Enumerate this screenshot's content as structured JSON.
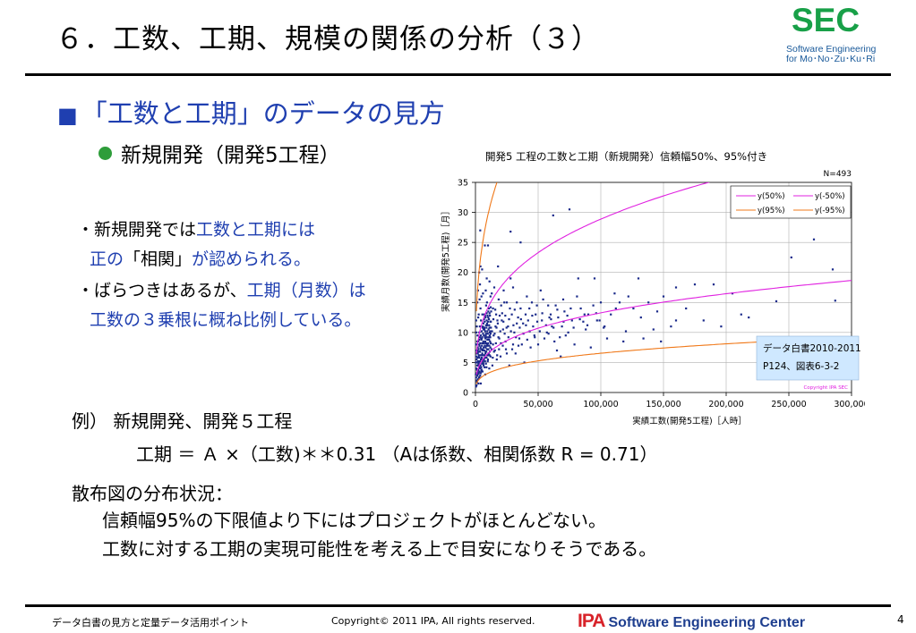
{
  "slide": {
    "title": "６．工数、工期、規模の関係の分析（３）",
    "logo": {
      "mark": "SEC",
      "line1": "Software Engineering",
      "line2": "for Mo･No･Zu･Ku･Ri"
    },
    "heading": "「工数と工期」のデータの見方",
    "subheading": "新規開発（開発5工程）",
    "note1": {
      "prefix": "・新規開発では",
      "emph1": "工数と工期には",
      "line2_emph_a": "正の",
      "line2_mid": "「相関」",
      "line2_rest": "が認められる。"
    },
    "note2": {
      "prefix": "・ばらつきはあるが、",
      "emph1": "工期（月数）は",
      "line2": "工数の３乗根に概ね比例している。"
    },
    "example_label": "例）  新規開発、開発５工程",
    "formula": "工期 ＝ Ａ ×（工数)＊＊0.31  （Aは係数、相関係数 R = 0.71）",
    "distribution_label": "散布図の分布状況：",
    "distribution_lines": [
      "信頼幅95%の下限値より下にはプロジェクトがほとんどない。",
      "工数に対する工期の実現可能性を考える上で目安になりそうである。"
    ]
  },
  "footer": {
    "left": "データ白書の見方と定量データ活用ポイント",
    "copyright": "Copyright© 2011 IPA, All rights reserved.",
    "brand_ipa": "IPA",
    "brand_text": "Software Engineering Center",
    "page": "4"
  },
  "chart_data": {
    "type": "scatter",
    "title": "開発5 工程の工数と工期（新規開発）信頼幅50%、95%付き",
    "n_label": "N=493",
    "xlabel": "実績工数(開発5工程)［人時］",
    "ylabel": "実績月数(開発5工程)［月］",
    "xlim": [
      0,
      300000
    ],
    "ylim": [
      0,
      35
    ],
    "xticks": [
      0,
      50000,
      100000,
      150000,
      200000,
      250000,
      300000
    ],
    "xtick_labels": [
      "0",
      "50,000",
      "100,000",
      "150,000",
      "200,000",
      "250,000",
      "300,000"
    ],
    "yticks": [
      0,
      5,
      10,
      15,
      20,
      25,
      30,
      35
    ],
    "legend": {
      "placement": "top-right",
      "entries": [
        {
          "label": "y(50%)",
          "color": "#e020e0"
        },
        {
          "label": "y(-50%)",
          "color": "#e020e0"
        },
        {
          "label": "y(95%)",
          "color": "#f07818"
        },
        {
          "label": "y(-95%)",
          "color": "#f07818"
        }
      ]
    },
    "fit": {
      "coefficient": 0.55,
      "exponent": 0.31
    },
    "bands": [
      {
        "name": "y(50%)",
        "factor": 1.48,
        "color": "#e020e0"
      },
      {
        "name": "y(-50%)",
        "factor": 0.68,
        "color": "#e020e0"
      },
      {
        "name": "y(95%)",
        "factor": 3.1,
        "color": "#f07818"
      },
      {
        "name": "y(-95%)",
        "factor": 0.335,
        "color": "#f07818"
      }
    ],
    "points_color": "#1a2a8a",
    "points": [
      [
        3800,
        27
      ],
      [
        7500,
        24.5
      ],
      [
        10000,
        24.5
      ],
      [
        28000,
        26.8
      ],
      [
        36000,
        25
      ],
      [
        62000,
        29.5
      ],
      [
        75000,
        30.5
      ],
      [
        4000,
        21
      ],
      [
        9000,
        19
      ],
      [
        18000,
        21
      ],
      [
        13000,
        16.5
      ],
      [
        28000,
        19
      ],
      [
        23000,
        15
      ],
      [
        33000,
        15
      ],
      [
        41000,
        16
      ],
      [
        52000,
        17
      ],
      [
        60000,
        13
      ],
      [
        70000,
        15.5
      ],
      [
        82000,
        19
      ],
      [
        95000,
        19
      ],
      [
        100000,
        15
      ],
      [
        115000,
        15
      ],
      [
        122000,
        16
      ],
      [
        138000,
        15
      ],
      [
        150000,
        16
      ],
      [
        160000,
        17.5
      ],
      [
        175000,
        18
      ],
      [
        190000,
        18
      ],
      [
        205000,
        16.5
      ],
      [
        218000,
        12.5
      ],
      [
        252000,
        22.5
      ],
      [
        270000,
        25.5
      ],
      [
        285000,
        20.5
      ],
      [
        287000,
        15.3
      ],
      [
        240000,
        15.2
      ],
      [
        130000,
        19
      ],
      [
        112000,
        14
      ],
      [
        120000,
        10.2
      ],
      [
        160000,
        12
      ],
      [
        90000,
        13
      ],
      [
        86000,
        11.8
      ],
      [
        72000,
        9.5
      ],
      [
        65000,
        7
      ],
      [
        57000,
        10
      ],
      [
        47000,
        9.5
      ],
      [
        42000,
        12
      ],
      [
        35000,
        9
      ],
      [
        30000,
        8
      ],
      [
        25000,
        6.5
      ],
      [
        21000,
        12
      ],
      [
        16000,
        11
      ],
      [
        14000,
        8
      ],
      [
        12000,
        6
      ],
      [
        11000,
        4
      ],
      [
        9000,
        12
      ],
      [
        8000,
        9
      ],
      [
        7000,
        7
      ],
      [
        6000,
        5
      ],
      [
        5000,
        3.5
      ],
      [
        4500,
        9
      ],
      [
        4000,
        14
      ],
      [
        3500,
        11
      ],
      [
        3000,
        8
      ],
      [
        2500,
        6
      ],
      [
        2000,
        4.5
      ],
      [
        1800,
        3
      ],
      [
        1500,
        7
      ],
      [
        1200,
        5
      ],
      [
        1000,
        2
      ],
      [
        800,
        10
      ],
      [
        700,
        4
      ],
      [
        600,
        6
      ],
      [
        500,
        1
      ],
      [
        2200,
        12.5
      ],
      [
        2800,
        2.5
      ],
      [
        3300,
        15.5
      ],
      [
        4200,
        1.5
      ],
      [
        5500,
        13
      ],
      [
        6500,
        10.5
      ],
      [
        7800,
        3
      ],
      [
        8500,
        14.5
      ],
      [
        9500,
        8
      ],
      [
        10500,
        6.5
      ],
      [
        11500,
        10
      ],
      [
        12500,
        13.5
      ],
      [
        13500,
        4.5
      ],
      [
        14500,
        9.5
      ],
      [
        15500,
        7
      ],
      [
        17000,
        5.5
      ],
      [
        17500,
        12
      ],
      [
        19000,
        9
      ],
      [
        20000,
        6
      ],
      [
        22000,
        10.5
      ],
      [
        24000,
        8.5
      ],
      [
        26000,
        11
      ],
      [
        27000,
        4.5
      ],
      [
        29000,
        13
      ],
      [
        31000,
        10
      ],
      [
        32000,
        6.5
      ],
      [
        34000,
        12.5
      ],
      [
        37000,
        8
      ],
      [
        38000,
        11.5
      ],
      [
        39000,
        5
      ],
      [
        43000,
        14
      ],
      [
        44000,
        7.5
      ],
      [
        46000,
        11
      ],
      [
        48000,
        13
      ],
      [
        50000,
        8
      ],
      [
        53000,
        12
      ],
      [
        55000,
        9
      ],
      [
        58000,
        14.5
      ],
      [
        61000,
        11
      ],
      [
        63000,
        8.5
      ],
      [
        66000,
        12.5
      ],
      [
        68000,
        6
      ],
      [
        71000,
        13.5
      ],
      [
        74000,
        10
      ],
      [
        77000,
        12
      ],
      [
        79000,
        8
      ],
      [
        84000,
        14
      ],
      [
        88000,
        10.5
      ],
      [
        92000,
        7.5
      ],
      [
        97000,
        12
      ],
      [
        103000,
        11
      ],
      [
        108000,
        13
      ],
      [
        118000,
        8.5
      ],
      [
        126000,
        14
      ],
      [
        132000,
        12.5
      ],
      [
        142000,
        10.5
      ],
      [
        145000,
        13.5
      ],
      [
        168000,
        14
      ],
      [
        182000,
        12
      ],
      [
        196000,
        11
      ],
      [
        212000,
        13
      ],
      [
        1500,
        15
      ],
      [
        2000,
        17
      ],
      [
        2600,
        13
      ],
      [
        3000,
        20
      ],
      [
        3600,
        18
      ],
      [
        4800,
        16
      ],
      [
        5300,
        20.5
      ],
      [
        6000,
        16.5
      ],
      [
        7000,
        13
      ],
      [
        8200,
        17
      ],
      [
        9200,
        15
      ],
      [
        10200,
        12.5
      ],
      [
        11200,
        18.5
      ],
      [
        12000,
        16
      ],
      [
        14000,
        14
      ],
      [
        15000,
        17.5
      ],
      [
        16500,
        13
      ],
      [
        18500,
        15.5
      ],
      [
        20500,
        14.5
      ],
      [
        22500,
        17
      ],
      [
        25000,
        15
      ],
      [
        27500,
        14
      ],
      [
        30000,
        17.5
      ],
      [
        33000,
        11.5
      ],
      [
        36000,
        14
      ],
      [
        40000,
        13
      ],
      [
        45000,
        15
      ],
      [
        49000,
        14.5
      ],
      [
        54000,
        15.5
      ],
      [
        59000,
        12.5
      ],
      [
        64000,
        14.5
      ],
      [
        69000,
        11
      ],
      [
        76000,
        14
      ],
      [
        81000,
        16
      ],
      [
        87000,
        13
      ],
      [
        94000,
        14.5
      ],
      [
        99000,
        12
      ],
      [
        105000,
        9
      ],
      [
        111000,
        16.5
      ],
      [
        134000,
        9
      ],
      [
        148000,
        8.5
      ],
      [
        156000,
        11
      ],
      [
        600,
        12
      ],
      [
        900,
        8
      ],
      [
        1100,
        11
      ],
      [
        1300,
        3.8
      ],
      [
        1600,
        9.5
      ],
      [
        1900,
        6.5
      ],
      [
        2300,
        8.5
      ],
      [
        2700,
        5
      ],
      [
        3100,
        10
      ],
      [
        3400,
        6.8
      ],
      [
        3700,
        4
      ],
      [
        4100,
        7.5
      ],
      [
        4400,
        12
      ],
      [
        4700,
        5.5
      ],
      [
        5100,
        9
      ],
      [
        5600,
        7
      ],
      [
        5900,
        11
      ],
      [
        6300,
        4.8
      ],
      [
        6700,
        8.2
      ],
      [
        7100,
        10.8
      ],
      [
        7400,
        5.8
      ],
      [
        7700,
        12.8
      ],
      [
        8100,
        6.8
      ],
      [
        8400,
        9.8
      ],
      [
        8800,
        4.2
      ],
      [
        9100,
        7.8
      ],
      [
        9400,
        11.2
      ],
      [
        9800,
        5.2
      ],
      [
        10400,
        8.8
      ],
      [
        10800,
        14
      ],
      [
        11300,
        6.2
      ],
      [
        11800,
        9.2
      ],
      [
        12300,
        11.8
      ],
      [
        12800,
        7.2
      ],
      [
        13200,
        10.2
      ],
      [
        13800,
        5.8
      ],
      [
        14300,
        12.2
      ],
      [
        14800,
        6.8
      ],
      [
        15300,
        9.8
      ],
      [
        15800,
        13.8
      ],
      [
        16300,
        8.2
      ],
      [
        16800,
        10.8
      ],
      [
        17300,
        6.2
      ],
      [
        17800,
        11.5
      ],
      [
        18300,
        9.2
      ],
      [
        18800,
        7.2
      ],
      [
        19300,
        12.8
      ],
      [
        19800,
        10.2
      ],
      [
        20300,
        8.2
      ],
      [
        21300,
        13.2
      ],
      [
        21800,
        7.8
      ],
      [
        22300,
        11.8
      ],
      [
        23300,
        9.8
      ],
      [
        23800,
        12.8
      ],
      [
        24300,
        7.2
      ],
      [
        24800,
        10.8
      ],
      [
        26300,
        9.2
      ],
      [
        26800,
        12.2
      ],
      [
        28300,
        10.2
      ],
      [
        29300,
        7.2
      ],
      [
        30300,
        11.2
      ],
      [
        31300,
        13.8
      ],
      [
        32300,
        9.2
      ],
      [
        34300,
        7.8
      ],
      [
        35300,
        10.8
      ],
      [
        36300,
        12.2
      ],
      [
        38300,
        9.8
      ],
      [
        40300,
        11.2
      ],
      [
        41300,
        8.8
      ],
      [
        43300,
        10.2
      ],
      [
        45300,
        12.8
      ],
      [
        47300,
        9.2
      ],
      [
        49300,
        11.8
      ],
      [
        51300,
        10.2
      ],
      [
        53300,
        13.2
      ],
      [
        56300,
        11.2
      ],
      [
        58300,
        9.8
      ],
      [
        60300,
        12.2
      ],
      [
        62300,
        10.8
      ],
      [
        65300,
        13.8
      ],
      [
        67300,
        9.2
      ],
      [
        70300,
        11.8
      ],
      [
        73300,
        12.8
      ],
      [
        78300,
        10.8
      ],
      [
        83300,
        12.2
      ],
      [
        89300,
        11.2
      ],
      [
        96300,
        13.2
      ],
      [
        102300,
        10.8
      ],
      [
        300,
        3
      ],
      [
        400,
        5
      ],
      [
        450,
        8
      ],
      [
        550,
        2.5
      ],
      [
        650,
        4
      ],
      [
        750,
        7
      ],
      [
        850,
        1.2
      ],
      [
        950,
        5.5
      ],
      [
        1050,
        3.2
      ],
      [
        1150,
        6.5
      ],
      [
        1250,
        1.8
      ],
      [
        1350,
        4.5
      ],
      [
        1450,
        8.5
      ],
      [
        1550,
        2.8
      ],
      [
        1650,
        5.8
      ],
      [
        1750,
        3.5
      ],
      [
        1850,
        7.5
      ],
      [
        1950,
        2.2
      ],
      [
        2050,
        5.2
      ],
      [
        2150,
        3.8
      ],
      [
        2250,
        6.8
      ],
      [
        2350,
        1.5
      ],
      [
        2450,
        4.8
      ],
      [
        2550,
        7.2
      ],
      [
        2650,
        3.2
      ],
      [
        2750,
        6.2
      ],
      [
        2850,
        8.8
      ],
      [
        2950,
        4.2
      ],
      [
        3050,
        2.5
      ],
      [
        3150,
        5.8
      ],
      [
        3250,
        7.8
      ],
      [
        3350,
        3.5
      ],
      [
        3450,
        9.2
      ],
      [
        3550,
        5.2
      ],
      [
        3650,
        6.8
      ],
      [
        3750,
        2.8
      ],
      [
        3850,
        8.2
      ],
      [
        3950,
        4.5
      ],
      [
        4050,
        6.2
      ],
      [
        4150,
        3.2
      ],
      [
        4250,
        9.5
      ],
      [
        4350,
        5.5
      ],
      [
        4450,
        7.2
      ],
      [
        4550,
        4.2
      ],
      [
        4650,
        8.8
      ],
      [
        4750,
        6.2
      ],
      [
        4850,
        3.8
      ],
      [
        4950,
        10.2
      ],
      [
        5050,
        5.8
      ],
      [
        5150,
        7.8
      ],
      [
        5250,
        4.8
      ],
      [
        5350,
        9.2
      ],
      [
        5450,
        6.5
      ],
      [
        5550,
        8.2
      ],
      [
        5650,
        3.5
      ],
      [
        5750,
        10.8
      ],
      [
        5850,
        7.2
      ],
      [
        5950,
        5.2
      ],
      [
        6050,
        9.8
      ],
      [
        6150,
        6.2
      ],
      [
        6250,
        8.5
      ],
      [
        6350,
        11.5
      ],
      [
        6450,
        4.5
      ],
      [
        6550,
        7.5
      ],
      [
        6650,
        9.5
      ],
      [
        6750,
        5.5
      ],
      [
        6850,
        12.2
      ],
      [
        6950,
        8.2
      ],
      [
        7050,
        6.2
      ],
      [
        7150,
        10.5
      ],
      [
        7250,
        4.2
      ],
      [
        7350,
        11.8
      ],
      [
        7450,
        7.8
      ],
      [
        7550,
        9.2
      ],
      [
        7650,
        5.2
      ],
      [
        7750,
        10.2
      ],
      [
        7850,
        8.5
      ],
      [
        7950,
        6.5
      ],
      [
        8050,
        12.5
      ],
      [
        8150,
        7.5
      ],
      [
        8250,
        9.5
      ],
      [
        8350,
        4.8
      ],
      [
        8450,
        11.2
      ],
      [
        8550,
        8.2
      ],
      [
        8650,
        6.8
      ],
      [
        8750,
        10.8
      ],
      [
        8850,
        5.8
      ],
      [
        8950,
        13.2
      ],
      [
        9050,
        9.2
      ],
      [
        9150,
        7.2
      ],
      [
        9250,
        11.5
      ],
      [
        9350,
        6.2
      ],
      [
        9450,
        10.2
      ],
      [
        9550,
        8.8
      ],
      [
        9650,
        12.8
      ],
      [
        9750,
        7.8
      ],
      [
        9850,
        9.8
      ],
      [
        9950,
        5.5
      ],
      [
        10050,
        11.8
      ],
      [
        10150,
        8.2
      ],
      [
        10250,
        13.5
      ],
      [
        10350,
        7.2
      ],
      [
        10450,
        10.5
      ],
      [
        10550,
        9.2
      ],
      [
        10650,
        6.2
      ],
      [
        10750,
        12.2
      ],
      [
        10850,
        8.8
      ],
      [
        10950,
        11.2
      ],
      [
        11050,
        7.8
      ],
      [
        11150,
        10.8
      ],
      [
        11250,
        13.2
      ],
      [
        11350,
        9.5
      ],
      [
        11450,
        6.8
      ],
      [
        11550,
        12.8
      ],
      [
        11650,
        8.5
      ],
      [
        11750,
        10.2
      ],
      [
        11850,
        7.5
      ],
      [
        11950,
        11.8
      ],
      [
        12050,
        9.8
      ],
      [
        12150,
        14.2
      ],
      [
        12250,
        8.2
      ],
      [
        12350,
        10.8
      ]
    ]
  }
}
